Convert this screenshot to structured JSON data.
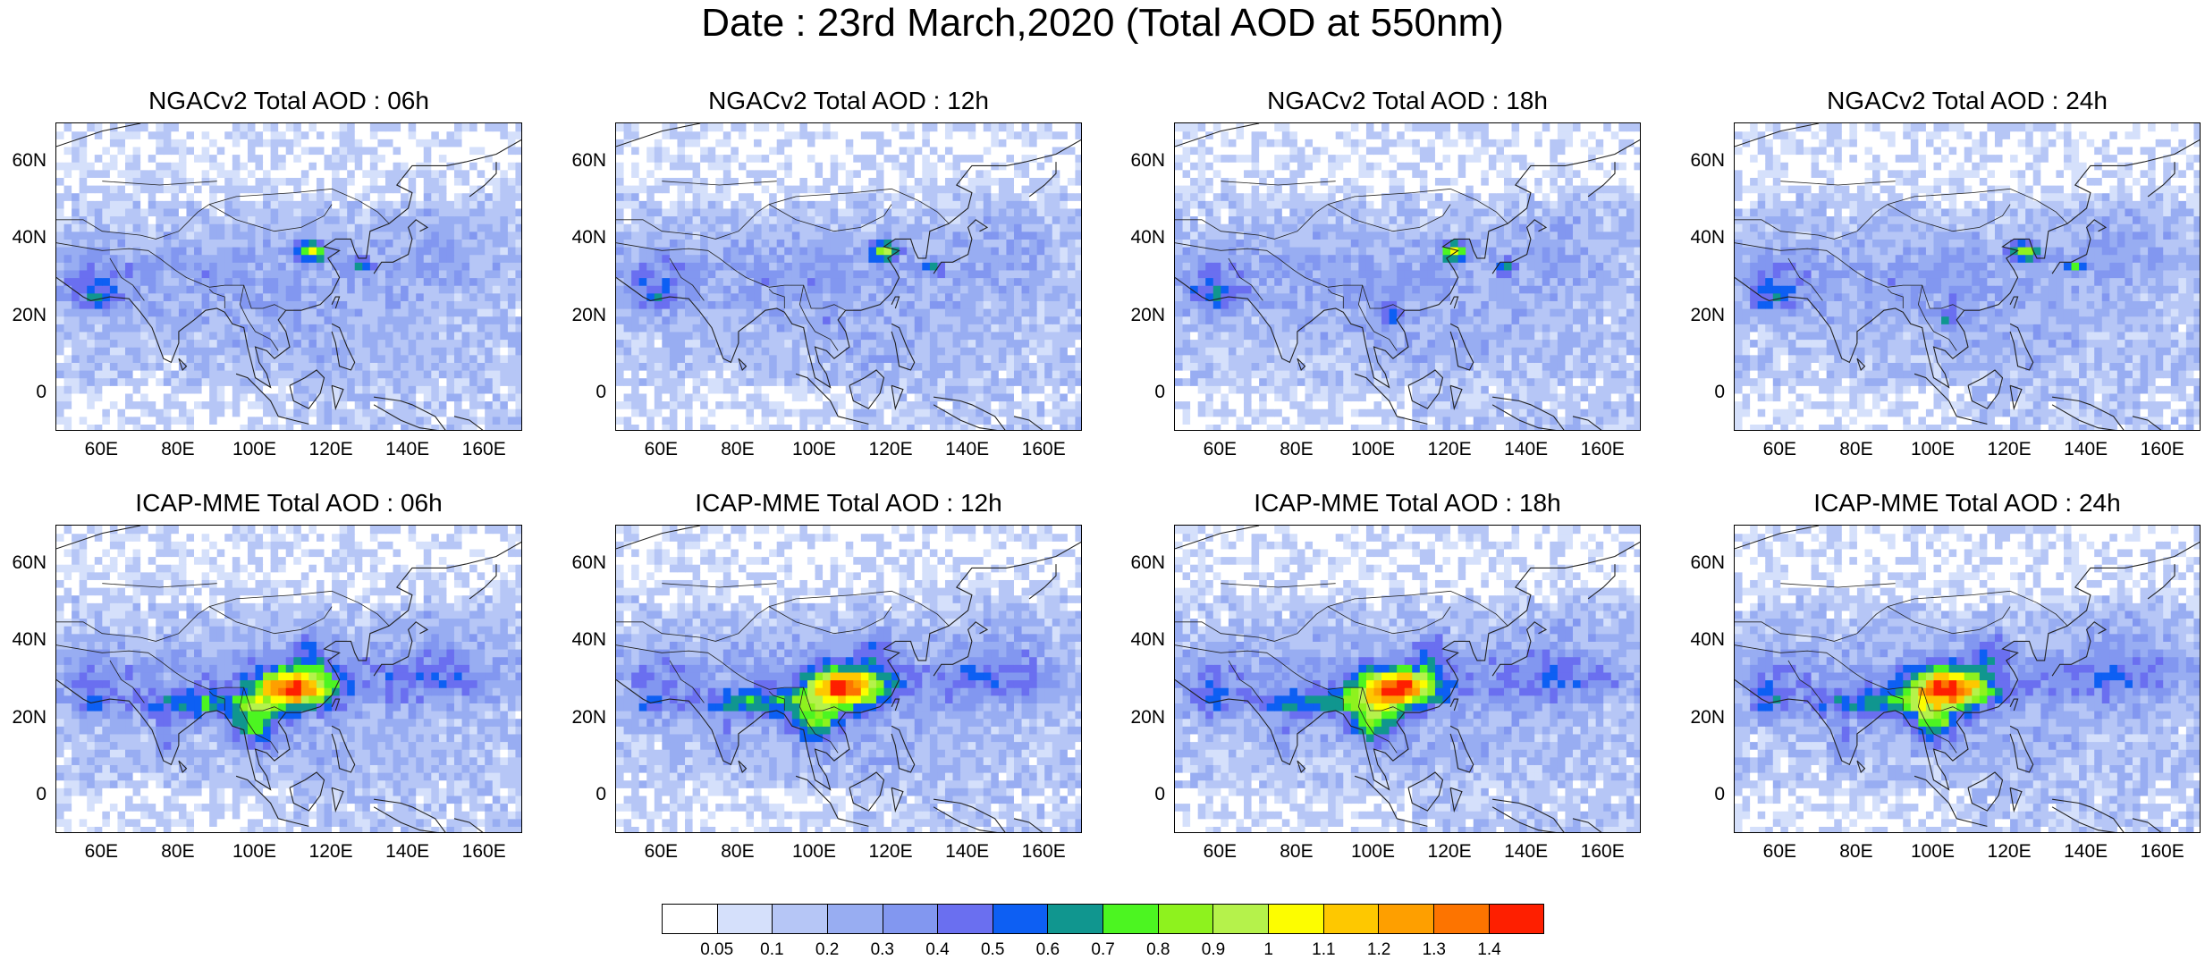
{
  "main_title": "Date : 23rd March,2020 (Total AOD at 550nm)",
  "panels": [
    {
      "title": "NGACv2 Total AOD : 06h",
      "model": "ngac",
      "hour": "06"
    },
    {
      "title": "NGACv2 Total AOD : 12h",
      "model": "ngac",
      "hour": "12"
    },
    {
      "title": "NGACv2 Total AOD : 18h",
      "model": "ngac",
      "hour": "18"
    },
    {
      "title": "NGACv2 Total AOD : 24h",
      "model": "ngac",
      "hour": "24"
    },
    {
      "title": "ICAP-MME Total AOD : 06h",
      "model": "icap",
      "hour": "06"
    },
    {
      "title": "ICAP-MME Total AOD : 12h",
      "model": "icap",
      "hour": "12"
    },
    {
      "title": "ICAP-MME Total AOD : 18h",
      "model": "icap",
      "hour": "18"
    },
    {
      "title": "ICAP-MME Total AOD : 24h",
      "model": "icap",
      "hour": "24"
    }
  ],
  "axes": {
    "lon_range": [
      48,
      170
    ],
    "lat_range": [
      -10,
      70
    ],
    "x_ticks": [
      "60E",
      "80E",
      "100E",
      "120E",
      "140E",
      "160E"
    ],
    "x_tick_values": [
      60,
      80,
      100,
      120,
      140,
      160
    ],
    "y_ticks": [
      "60N",
      "40N",
      "20N",
      "0"
    ],
    "y_tick_values": [
      60,
      40,
      20,
      0
    ]
  },
  "colorbar": {
    "colors": [
      "#ffffff",
      "#d5e0fb",
      "#b6c6f6",
      "#98adf2",
      "#8297f0",
      "#6a6ff0",
      "#0d5ff3",
      "#10968f",
      "#4cf521",
      "#8ef21e",
      "#b5f24b",
      "#fdfd00",
      "#fec800",
      "#fe9f00",
      "#fd7400",
      "#fe1f00"
    ],
    "labels": [
      "0.05",
      "0.1",
      "0.2",
      "0.3",
      "0.4",
      "0.5",
      "0.6",
      "0.7",
      "0.8",
      "0.9",
      "1",
      "1.1",
      "1.2",
      "1.3",
      "1.4"
    ]
  }
}
